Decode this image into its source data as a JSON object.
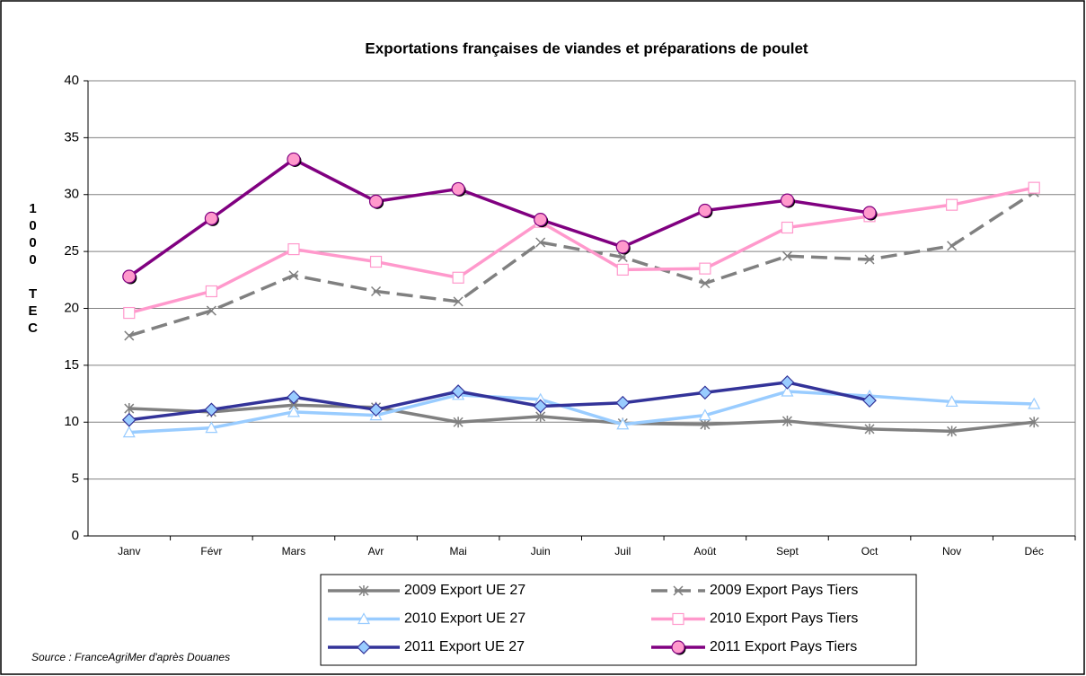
{
  "chart_data": {
    "type": "line",
    "title": "Exportations françaises de viandes et préparations de poulet",
    "y_label": "1000 TEC",
    "source": "Source : FranceAgriMer d'après Douanes",
    "categories": [
      "Janv",
      "Févr",
      "Mars",
      "Avr",
      "Mai",
      "Juin",
      "Juil",
      "Août",
      "Sept",
      "Oct",
      "Nov",
      "Déc"
    ],
    "ylim": [
      0,
      40
    ],
    "yticks": [
      0,
      5,
      10,
      15,
      20,
      25,
      30,
      35,
      40
    ],
    "grid": true,
    "series": [
      {
        "name": "2009 Export UE 27",
        "color": "#808080",
        "marker": "star",
        "marker_fill": "#808080",
        "dashed": false,
        "values": [
          11.2,
          10.9,
          11.5,
          11.3,
          10.0,
          10.5,
          9.9,
          9.8,
          10.1,
          9.4,
          9.2,
          10.0
        ]
      },
      {
        "name": "2009 Export Pays Tiers",
        "color": "#808080",
        "marker": "x",
        "marker_fill": "#808080",
        "dashed": true,
        "values": [
          17.6,
          19.8,
          22.9,
          21.5,
          20.6,
          25.8,
          24.5,
          22.2,
          24.6,
          24.3,
          25.5,
          30.2
        ]
      },
      {
        "name": "2010 Export UE 27",
        "color": "#99ccff",
        "marker": "triangle",
        "marker_fill": "#ffffff",
        "dashed": false,
        "values": [
          9.1,
          9.5,
          10.9,
          10.6,
          12.4,
          12.0,
          9.8,
          10.6,
          12.7,
          12.3,
          11.8,
          11.6
        ]
      },
      {
        "name": "2010 Export Pays Tiers",
        "color": "#ff99cc",
        "marker": "square",
        "marker_fill": "#ffffff",
        "dashed": false,
        "values": [
          19.6,
          21.5,
          25.2,
          24.1,
          22.7,
          27.6,
          23.4,
          23.5,
          27.1,
          28.1,
          29.1,
          30.6
        ]
      },
      {
        "name": "2011 Export UE 27",
        "color": "#333399",
        "marker": "diamond",
        "marker_fill": "#99ccff",
        "dashed": false,
        "values": [
          10.2,
          11.1,
          12.2,
          11.1,
          12.7,
          11.4,
          11.7,
          12.6,
          13.5,
          11.9,
          null,
          null
        ]
      },
      {
        "name": "2011 Export Pays Tiers",
        "color": "#800080",
        "marker": "circle",
        "marker_fill": "#ff99cc",
        "dashed": false,
        "values": [
          22.8,
          27.9,
          33.1,
          29.4,
          30.5,
          27.8,
          25.4,
          28.6,
          29.5,
          28.4,
          null,
          null
        ]
      }
    ]
  }
}
